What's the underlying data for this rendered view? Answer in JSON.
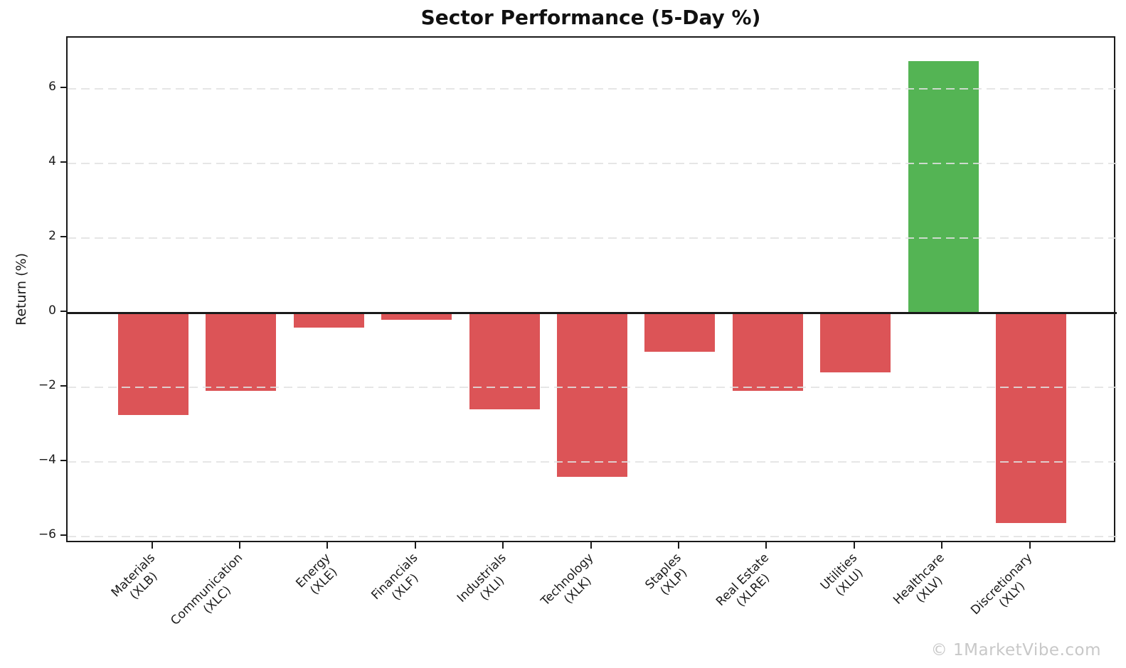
{
  "chart": {
    "title": "Sector Performance (5-Day %)",
    "ylabel": "Return (%)",
    "watermark": "© 1MarketVibe.com"
  },
  "chart_data": {
    "type": "bar",
    "title": "Sector Performance (5-Day %)",
    "xlabel": "",
    "ylabel": "Return (%)",
    "categories": [
      "Materials\n(XLB)",
      "Communication\n(XLC)",
      "Energy\n(XLE)",
      "Financials\n(XLF)",
      "Industrials\n(XLI)",
      "Technology\n(XLK)",
      "Staples\n(XLP)",
      "Real Estate\n(XLRE)",
      "Utilities\n(XLU)",
      "Healthcare\n(XLV)",
      "Discretionary\n(XLY)"
    ],
    "values": [
      -2.75,
      -2.1,
      -0.4,
      -0.2,
      -2.6,
      -4.4,
      -1.05,
      -2.1,
      -1.6,
      6.75,
      -5.65
    ],
    "ylim": [
      -6.2,
      7.37
    ],
    "yticks": [
      6,
      4,
      2,
      0,
      -2,
      -4,
      -6
    ],
    "ytick_labels": [
      "6",
      "4",
      "2",
      "0",
      "−2",
      "−4",
      "−6"
    ],
    "grid": "horizontal dashed light-gray, drawn over bars",
    "zero_line": "solid black horizontal line at 0",
    "legend": "none",
    "bar_colors": {
      "positive": "#54b454",
      "negative": "#dc5457"
    }
  }
}
